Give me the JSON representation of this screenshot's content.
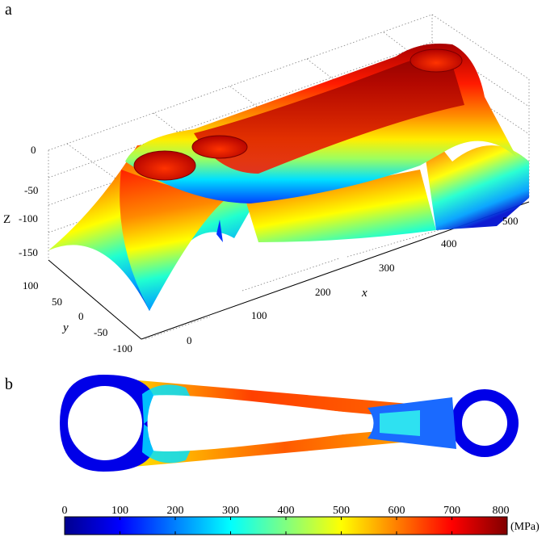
{
  "panel_a": {
    "label": "a",
    "axis_labels": {
      "z": "Z",
      "x": "x",
      "y": "y"
    },
    "z_ticks": [
      "0",
      "-50",
      "-100",
      "-150"
    ],
    "y_ticks": [
      "100",
      "50",
      "0",
      "-50",
      "-100"
    ],
    "x_ticks": [
      "0",
      "100",
      "200",
      "300",
      "400",
      "500"
    ]
  },
  "panel_b": {
    "label": "b",
    "colorbar": {
      "ticks": [
        "0",
        "100",
        "200",
        "300",
        "400",
        "500",
        "600",
        "700",
        "800"
      ],
      "unit": "(MPa)"
    }
  },
  "chart_data": [
    {
      "type": "surface",
      "panel": "a",
      "axes": {
        "x": "x",
        "y": "y",
        "z": "Z"
      },
      "xlim": [
        0,
        500
      ],
      "ylim": [
        -100,
        100
      ],
      "zlim": [
        -150,
        0
      ],
      "grid": true,
      "colormap": "jet"
    },
    {
      "type": "heatmap",
      "panel": "b",
      "colormap": "jet",
      "color_range": [
        0,
        800
      ],
      "unit": "(MPa)",
      "colorbar_ticks": [
        0,
        100,
        200,
        300,
        400,
        500,
        600,
        700,
        800
      ]
    }
  ]
}
